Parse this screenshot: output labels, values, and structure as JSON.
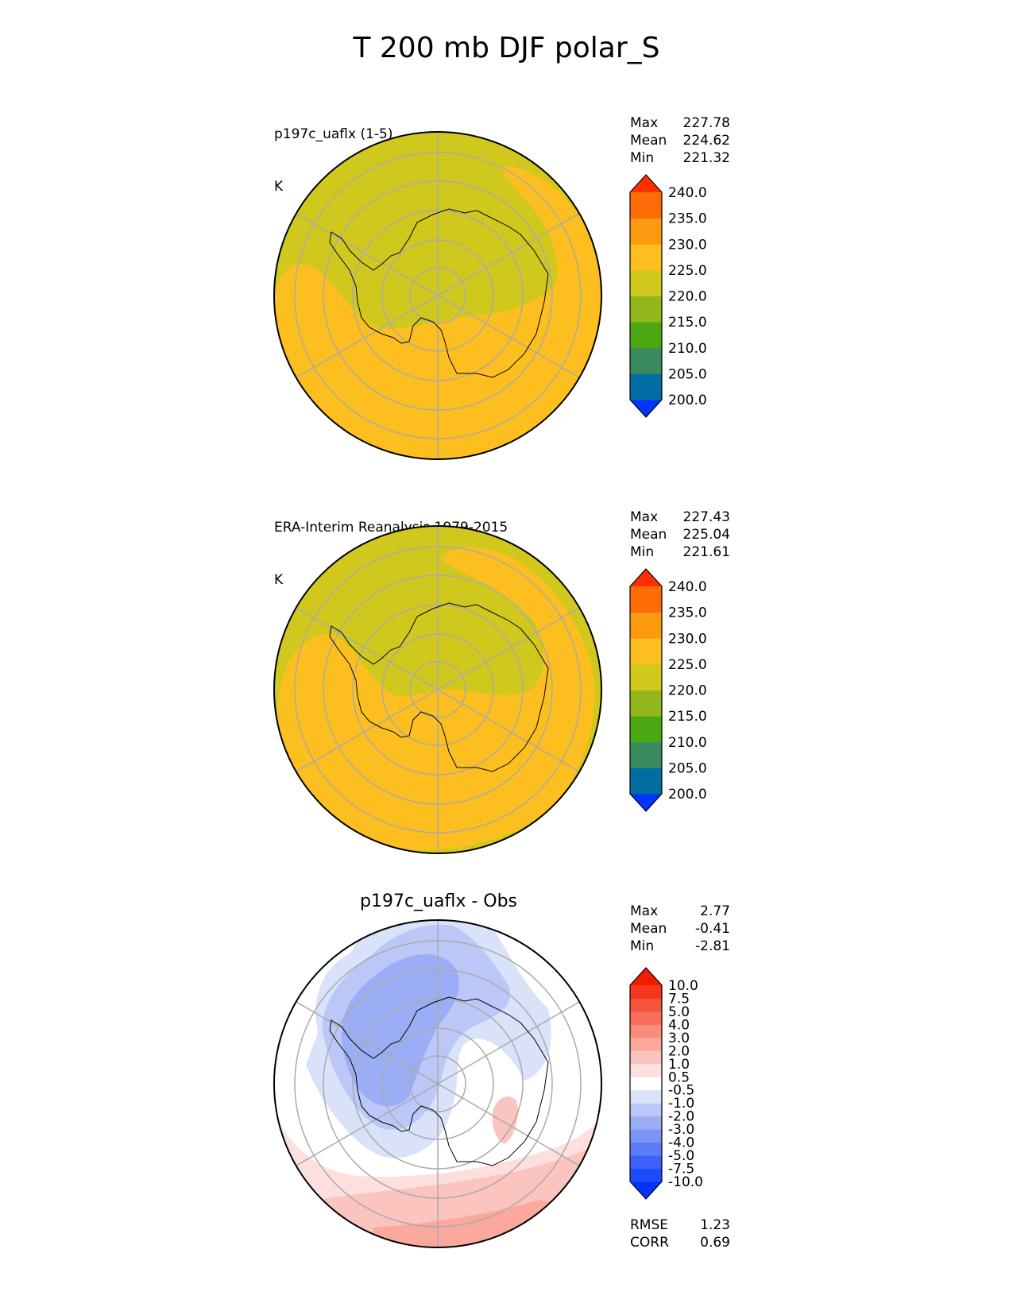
{
  "title": "T 200 mb DJF polar_S",
  "colors": {
    "olive": "#d1c81e",
    "orange": "#fdbf1f",
    "ring": "#aaaaaa",
    "land": "#000000"
  },
  "panels": [
    {
      "id": "test",
      "line1": "p197c_uaflx (1-5)",
      "line2": "K",
      "stats": {
        "max_label": "Max",
        "max": "227.78",
        "mean_label": "Mean",
        "mean": "224.62",
        "min_label": "Min",
        "min": "221.32"
      }
    },
    {
      "id": "ref",
      "line1": "ERA-Interim Reanalysis 1979-2015",
      "line2": "K",
      "stats": {
        "max_label": "Max",
        "max": "227.43",
        "mean_label": "Mean",
        "mean": "225.04",
        "min_label": "Min",
        "min": "221.61"
      }
    },
    {
      "id": "diff",
      "title": "p197c_uaflx - Obs",
      "stats": {
        "max_label": "Max",
        "max": "2.77",
        "mean_label": "Mean",
        "mean": "-0.41",
        "min_label": "Min",
        "min": "-2.81"
      },
      "metrics": {
        "rmse_label": "RMSE",
        "rmse": "1.23",
        "corr_label": "CORR",
        "corr": "0.69"
      }
    }
  ],
  "chart_data": [
    {
      "type": "heatmap",
      "projection": "south polar stereographic",
      "title": "p197c_uaflx (1-5)",
      "units": "K",
      "colorbar": {
        "levels": [
          "200.0",
          "205.0",
          "210.0",
          "215.0",
          "220.0",
          "225.0",
          "230.0",
          "235.0",
          "240.0"
        ],
        "colors": [
          "#0033ff",
          "#006ea3",
          "#3a8a5e",
          "#4aa812",
          "#92b71b",
          "#d1c81e",
          "#fdbf1f",
          "#fd9a10",
          "#fe6c08",
          "#ff2f00"
        ],
        "extend": "both"
      }
    },
    {
      "type": "heatmap",
      "projection": "south polar stereographic",
      "title": "ERA-Interim Reanalysis 1979-2015",
      "units": "K",
      "colorbar": {
        "levels": [
          "200.0",
          "205.0",
          "210.0",
          "215.0",
          "220.0",
          "225.0",
          "230.0",
          "235.0",
          "240.0"
        ],
        "colors": [
          "#0033ff",
          "#006ea3",
          "#3a8a5e",
          "#4aa812",
          "#92b71b",
          "#d1c81e",
          "#fdbf1f",
          "#fd9a10",
          "#fe6c08",
          "#ff2f00"
        ],
        "extend": "both"
      }
    },
    {
      "type": "heatmap",
      "projection": "south polar stereographic",
      "title": "p197c_uaflx - Obs",
      "colorbar": {
        "levels": [
          "-10.0",
          "-7.5",
          "-5.0",
          "-4.0",
          "-3.0",
          "-2.0",
          "-1.0",
          "-0.5",
          "0.5",
          "1.0",
          "2.0",
          "3.0",
          "4.0",
          "5.0",
          "7.5",
          "10.0"
        ],
        "colors": [
          "#0533fc",
          "#1f4bfb",
          "#3d62fa",
          "#5c7cf8",
          "#7b95f6",
          "#9badf5",
          "#bbc8f7",
          "#dae2fa",
          "#ffffff",
          "#fde0de",
          "#fcc4be",
          "#fba89d",
          "#fa8c7c",
          "#f8705c",
          "#f6543b",
          "#f5381b",
          "#f41c00"
        ],
        "extend": "both"
      }
    }
  ]
}
